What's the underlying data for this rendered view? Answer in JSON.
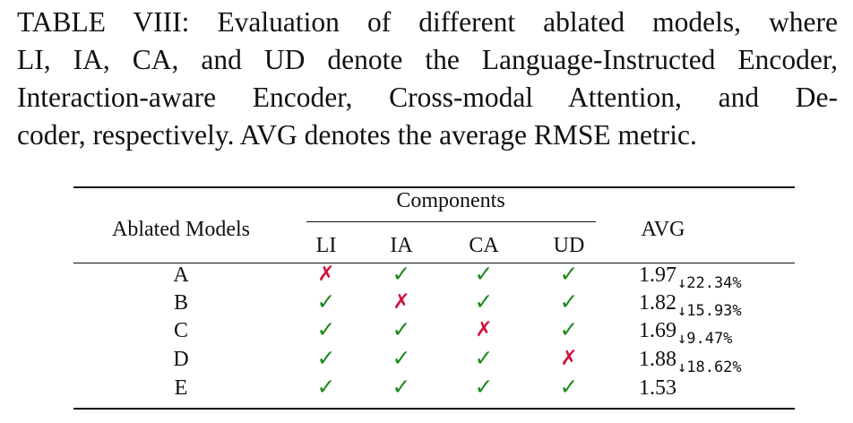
{
  "caption": {
    "lines": [
      "TABLE VIII: Evaluation of different ablated models, where",
      "LI, IA, CA, and UD denote the Language-Instructed Encoder,",
      "Interaction-aware Encoder, Cross-modal Attention, and De-",
      "coder, respectively. AVG denotes the average RMSE metric."
    ]
  },
  "table": {
    "header": {
      "model": "Ablated Models",
      "components": "Components",
      "avg": "AVG",
      "subcolumns": [
        "LI",
        "IA",
        "CA",
        "UD"
      ]
    },
    "marks": {
      "check": "✓",
      "cross": "✗"
    },
    "colors": {
      "check": "#1e8a1e",
      "cross": "#d0143c"
    },
    "rows": [
      {
        "model": "A",
        "components": [
          false,
          true,
          true,
          true
        ],
        "avg": "1.97",
        "delta": "↓22.34%"
      },
      {
        "model": "B",
        "components": [
          true,
          false,
          true,
          true
        ],
        "avg": "1.82",
        "delta": "↓15.93%"
      },
      {
        "model": "C",
        "components": [
          true,
          true,
          false,
          true
        ],
        "avg": "1.69",
        "delta": "↓9.47%"
      },
      {
        "model": "D",
        "components": [
          true,
          true,
          true,
          false
        ],
        "avg": "1.88",
        "delta": "↓18.62%"
      },
      {
        "model": "E",
        "components": [
          true,
          true,
          true,
          true
        ],
        "avg": "1.53",
        "delta": ""
      }
    ]
  }
}
